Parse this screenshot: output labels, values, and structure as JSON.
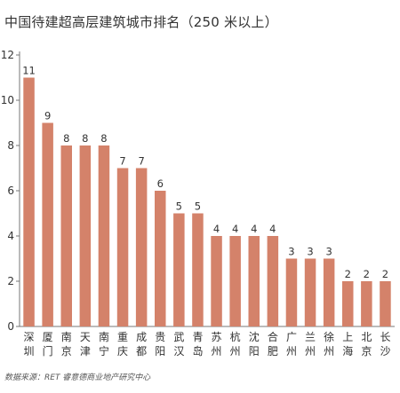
{
  "title": "中国待建超高层建筑城市排名（250 米以上）",
  "source": "数据来源：RET 睿意德商业地产研究中心",
  "colors": {
    "bar": "#d4826a",
    "axis": "#777777",
    "text": "#333333"
  },
  "chart_data": {
    "type": "bar",
    "title": "中国待建超高层建筑城市排名（250 米以上）",
    "xlabel": "",
    "ylabel": "",
    "ylim": [
      0,
      12
    ],
    "yticks": [
      0,
      2,
      4,
      6,
      8,
      10,
      12
    ],
    "grid": false,
    "categories": [
      "深圳",
      "厦门",
      "南京",
      "天津",
      "南宁",
      "重庆",
      "成都",
      "贵阳",
      "武汉",
      "青岛",
      "苏州",
      "杭州",
      "沈阳",
      "合肥",
      "广州",
      "兰州",
      "徐州",
      "上海",
      "北京",
      "长沙"
    ],
    "values": [
      11,
      9,
      8,
      8,
      8,
      7,
      7,
      6,
      5,
      5,
      4,
      4,
      4,
      4,
      3,
      3,
      3,
      2,
      2,
      2
    ]
  }
}
